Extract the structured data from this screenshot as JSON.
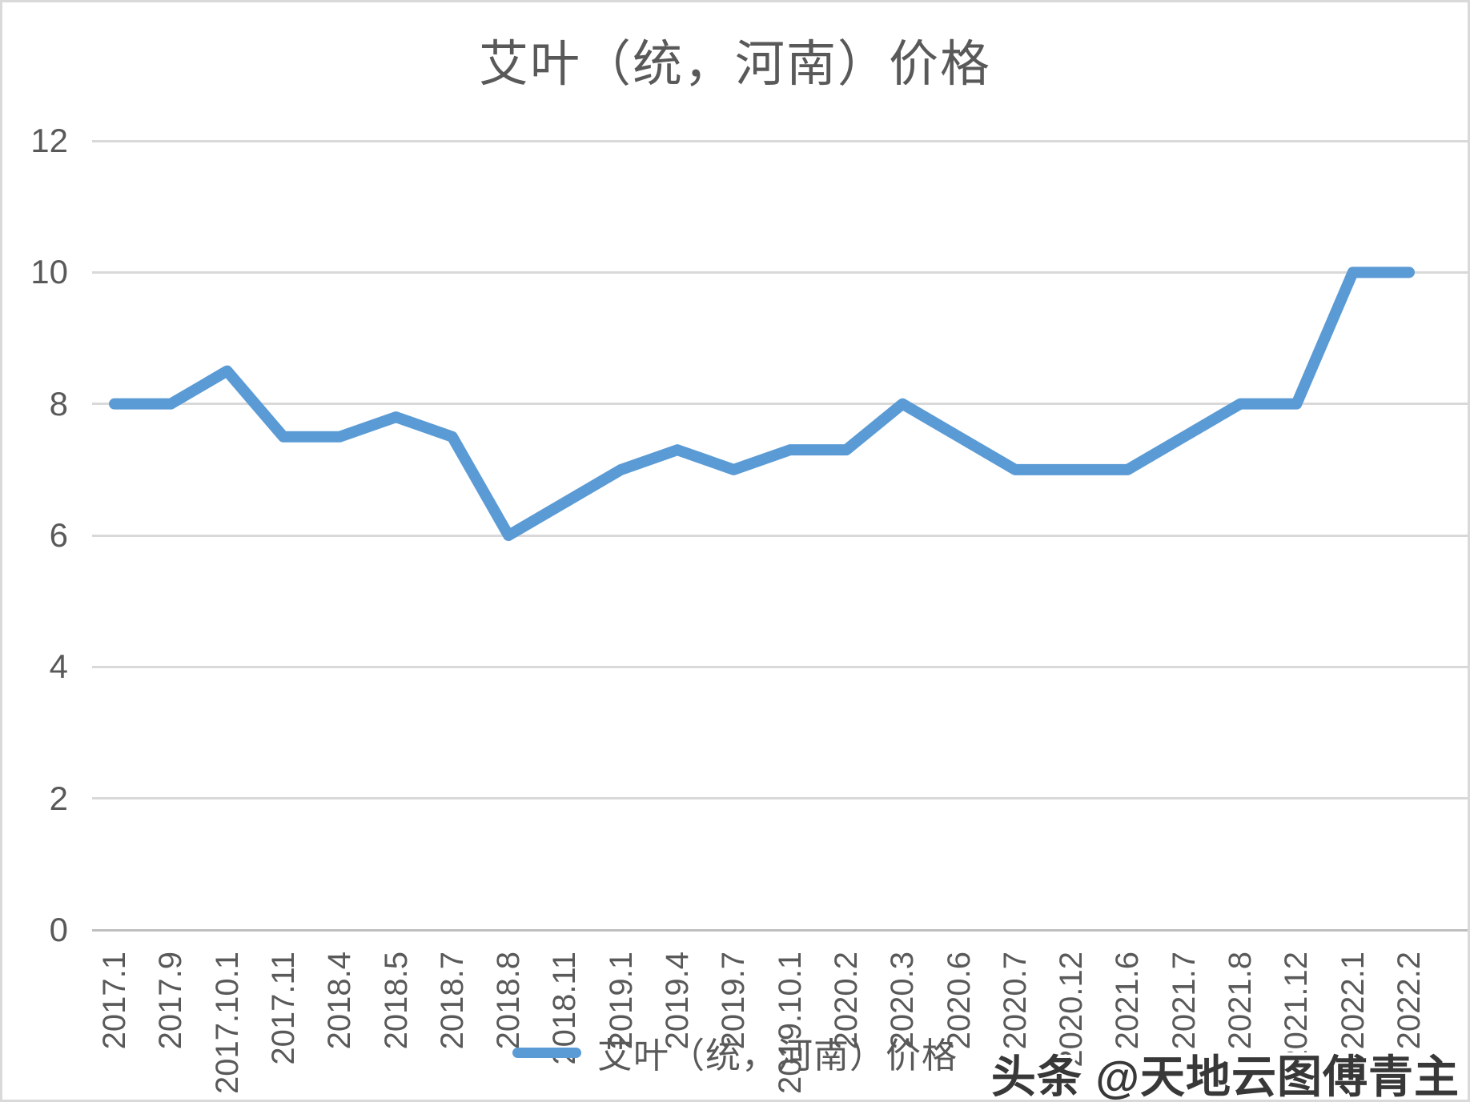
{
  "title": "艾叶（统，河南）价格",
  "legend": {
    "label": "艾叶（统，河南）价格",
    "swatch_color": "#5B9BD5"
  },
  "watermark": "头条 @天地云图傅青主",
  "chart_data": {
    "type": "line",
    "title": "艾叶（统，河南）价格",
    "categories": [
      "2017.1",
      "2017.9",
      "2017.10.1",
      "2017.11",
      "2018.4",
      "2018.5",
      "2018.7",
      "2018.8",
      "2018.11",
      "2019.1",
      "2019.4",
      "2019.7",
      "2019.10.1",
      "2020.2",
      "2020.3",
      "2020.6",
      "2020.7",
      "2020.12",
      "2021.6",
      "2021.7",
      "2021.8",
      "2021.12",
      "2022.1",
      "2022.2"
    ],
    "series": [
      {
        "name": "艾叶（统，河南）价格",
        "values": [
          8,
          8,
          8.5,
          7.5,
          7.5,
          7.8,
          7.5,
          6,
          6.5,
          7,
          7.3,
          7,
          7.3,
          7.3,
          8,
          7.5,
          7,
          7,
          7,
          7.5,
          8,
          8,
          10,
          10
        ]
      }
    ],
    "xlabel": "",
    "ylabel": "",
    "ylim": [
      0,
      12
    ],
    "yticks": [
      0,
      2,
      4,
      6,
      8,
      10,
      12
    ],
    "grid": "horizontal",
    "legend_position": "bottom",
    "line_color": "#5B9BD5",
    "text_color": "#595959",
    "gridline_color": "#D9D9D9"
  }
}
